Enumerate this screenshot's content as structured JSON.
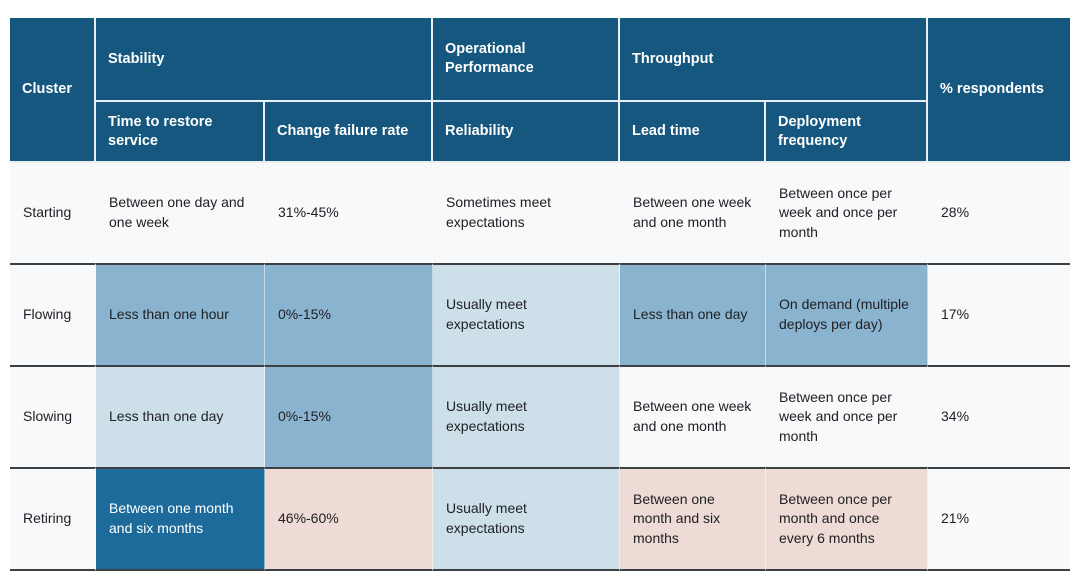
{
  "table": {
    "header": {
      "cluster": "Cluster",
      "groups": [
        {
          "label": "Stability",
          "span": 2
        },
        {
          "label": "Operational Performance",
          "span": 1
        },
        {
          "label": "Throughput",
          "span": 2
        }
      ],
      "subheaders": [
        "Time to restore service",
        "Change failure rate",
        "Reliability",
        "Lead time",
        "Deployment frequency"
      ],
      "respondents": "% respondents"
    },
    "rows": [
      {
        "cluster": "Starting",
        "cells": [
          {
            "text": "Between one day and one week",
            "tone": "plain"
          },
          {
            "text": "31%-45%",
            "tone": "plain"
          },
          {
            "text": "Sometimes meet expectations",
            "tone": "plain"
          },
          {
            "text": "Between one week and one month",
            "tone": "plain"
          },
          {
            "text": "Between once per week and once per month",
            "tone": "plain"
          }
        ],
        "respondents": "28%"
      },
      {
        "cluster": "Flowing",
        "cells": [
          {
            "text": "Less than one hour",
            "tone": "medium"
          },
          {
            "text": "0%-15%",
            "tone": "medium"
          },
          {
            "text": "Usually meet expectations",
            "tone": "light"
          },
          {
            "text": "Less than one day",
            "tone": "medium"
          },
          {
            "text": "On demand (multiple deploys per day)",
            "tone": "medium"
          }
        ],
        "respondents": "17%"
      },
      {
        "cluster": "Slowing",
        "cells": [
          {
            "text": "Less than one day",
            "tone": "light"
          },
          {
            "text": "0%-15%",
            "tone": "medium"
          },
          {
            "text": "Usually meet expectations",
            "tone": "light"
          },
          {
            "text": "Between one week and one month",
            "tone": "plain"
          },
          {
            "text": "Between once per week and once per month",
            "tone": "plain"
          }
        ],
        "respondents": "34%"
      },
      {
        "cluster": "Retiring",
        "cells": [
          {
            "text": "Between one month and six months",
            "tone": "dark"
          },
          {
            "text": "46%-60%",
            "tone": "rose"
          },
          {
            "text": "Usually meet expectations",
            "tone": "light"
          },
          {
            "text": "Between one month and six months",
            "tone": "rose"
          },
          {
            "text": "Between once per month and once every 6 months",
            "tone": "rose"
          }
        ],
        "respondents": "21%"
      }
    ],
    "colors": {
      "header_blue": "#15577e",
      "dark_cell_blue": "#1d6b9b",
      "medium_blue": "#8ab3cf",
      "light_blue": "#cde0ea",
      "rose": "#eedbd6",
      "plain": "#f8f9fa",
      "row_divider": "#3c4043",
      "header_divider": "#e9eff3",
      "header_text": "#ffffff",
      "body_text": "#202124"
    }
  },
  "chart_data": {
    "type": "table",
    "title": "",
    "columns": [
      "Cluster",
      "Time to restore service",
      "Change failure rate",
      "Reliability",
      "Lead time",
      "Deployment frequency",
      "% respondents"
    ],
    "column_groups": [
      {
        "label": "Stability",
        "columns": [
          "Time to restore service",
          "Change failure rate"
        ]
      },
      {
        "label": "Operational Performance",
        "columns": [
          "Reliability"
        ]
      },
      {
        "label": "Throughput",
        "columns": [
          "Lead time",
          "Deployment frequency"
        ]
      }
    ],
    "rows": [
      [
        "Starting",
        "Between one day and one week",
        "31%-45%",
        "Sometimes meet expectations",
        "Between one week and one month",
        "Between once per week and once per month",
        "28%"
      ],
      [
        "Flowing",
        "Less than one hour",
        "0%-15%",
        "Usually meet expectations",
        "Less than one day",
        "On demand (multiple deploys per day)",
        "17%"
      ],
      [
        "Slowing",
        "Less than one day",
        "0%-15%",
        "Usually meet expectations",
        "Between one week and one month",
        "Between once per week and once per month",
        "34%"
      ],
      [
        "Retiring",
        "Between one month and six months",
        "46%-60%",
        "Usually meet expectations",
        "Between one month and six months",
        "Between once per month and once every 6 months",
        "21%"
      ]
    ],
    "legend_position": "none",
    "grid": "row-dividers"
  }
}
